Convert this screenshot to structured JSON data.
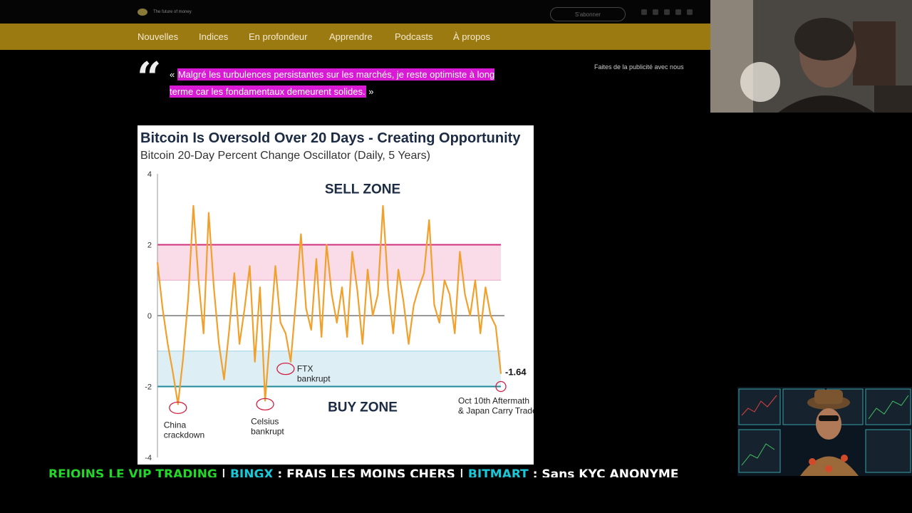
{
  "header": {
    "logo_tagline": "The future of money",
    "subscribe_label": "S'abonner"
  },
  "nav": {
    "items": [
      "Nouvelles",
      "Indices",
      "En profondeur",
      "Apprendre",
      "Podcasts",
      "À propos"
    ]
  },
  "quote": {
    "open": "« ",
    "text": "Malgré les turbulences persistantes sur les marchés, je reste optimiste à long terme car les fondamentaux demeurent solides.",
    "close": " »"
  },
  "ad_link": "Faites de la publicité avec nous",
  "chart_data": {
    "type": "line",
    "title": "Bitcoin Is Oversold Over 20 Days - Creating Opportunity",
    "subtitle": "Bitcoin 20-Day Percent Change Oscillator (Daily, 5 Years)",
    "ylim": [
      -4,
      4
    ],
    "yticks": [
      "4",
      "2",
      "0",
      "-2",
      "-4"
    ],
    "thresholds": {
      "sell_upper": 2,
      "sell_lower": 1,
      "buy_upper": -1,
      "buy_lower": -2
    },
    "zone_labels": {
      "sell": "SELL ZONE",
      "buy": "BUY ZONE"
    },
    "last_value_label": "-1.64",
    "series": [
      {
        "values": [
          1.5,
          0.2,
          -0.8,
          -1.6,
          -2.5,
          -1.2,
          0.5,
          3.1,
          1.0,
          -0.5,
          2.9,
          0.8,
          -0.8,
          -1.8,
          -0.4,
          1.2,
          -0.8,
          0.2,
          1.4,
          -1.3,
          0.8,
          -2.4,
          -0.5,
          1.4,
          -0.2,
          -0.5,
          -1.3,
          0.4,
          2.3,
          0.2,
          -0.4,
          1.6,
          -0.6,
          2.0,
          0.6,
          -0.2,
          0.8,
          -0.6,
          1.8,
          0.7,
          -0.8,
          1.3,
          0.0,
          0.6,
          3.1,
          0.8,
          -0.5,
          1.3,
          0.4,
          -0.8,
          0.3,
          0.8,
          1.2,
          2.7,
          0.3,
          -0.2,
          1.0,
          0.6,
          -0.5,
          1.8,
          0.6,
          0.0,
          1.0,
          -0.5,
          0.8,
          0.0,
          -0.3,
          -1.64
        ],
        "color": "#f2a02c"
      }
    ],
    "annotations": [
      {
        "x_index": 4,
        "value": -2.6,
        "label": [
          "China",
          "crackdown"
        ]
      },
      {
        "x_index": 21,
        "value": -2.5,
        "label": [
          "Celsius",
          "bankrupt"
        ]
      },
      {
        "x_index": 25,
        "value": -1.5,
        "label": [
          "FTX",
          "bankrupt"
        ]
      },
      {
        "x_index": 67,
        "value": -2.0,
        "label": [
          "Oct 10th Aftermath",
          "& Japan Carry Trade"
        ]
      }
    ],
    "colors": {
      "title": "#1c2b44",
      "sell_line": "#d0307c",
      "buy_line": "#1e8a9a",
      "sell_fill": "#fadbe8",
      "buy_fill": "#ddeef5"
    }
  },
  "ticker": {
    "segments": [
      {
        "text": "REJOINS LE VIP TRADING",
        "color": "g"
      },
      {
        "text": " | ",
        "color": "w"
      },
      {
        "text": "BINGX",
        "color": "c"
      },
      {
        "text": " : FRAIS LES MOINS CHERS ",
        "color": "w"
      },
      {
        "text": " | ",
        "color": "w"
      },
      {
        "text": "BITMART",
        "color": "c"
      },
      {
        "text": " : Sans KYC ANONYME",
        "color": "w"
      }
    ]
  }
}
